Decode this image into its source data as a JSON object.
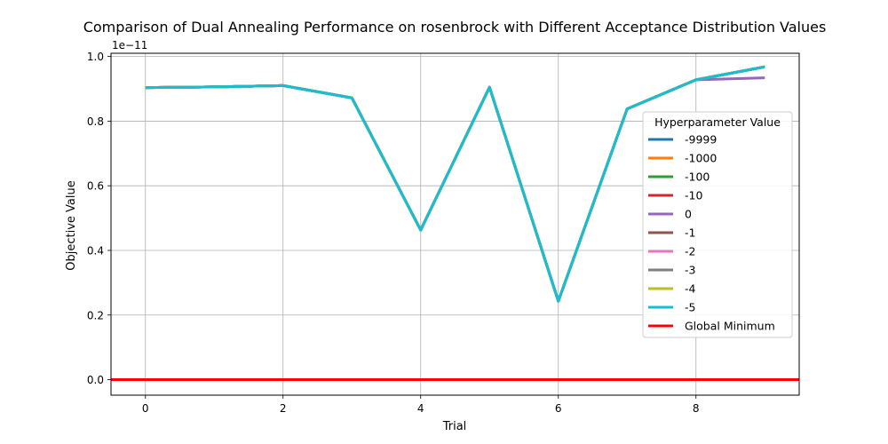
{
  "chart_data": {
    "type": "line",
    "title": "Comparison of Dual Annealing Performance on rosenbrock with Different Acceptance Distribution Values",
    "xlabel": "Trial",
    "ylabel": "Objective Value",
    "y_offset_label": "1e−11",
    "xlim": [
      -0.5,
      9.5
    ],
    "ylim": [
      -0.048,
      1.01
    ],
    "x_ticks": [
      0,
      2,
      4,
      6,
      8
    ],
    "y_ticks": [
      0.0,
      0.2,
      0.4,
      0.6,
      0.8,
      1.0
    ],
    "y_tick_labels": [
      "0.0",
      "0.2",
      "0.4",
      "0.6",
      "0.8",
      "1.0"
    ],
    "grid": true,
    "legend": {
      "title": "Hyperparameter Value",
      "placement": "center-right"
    },
    "x": [
      0,
      1,
      2,
      3,
      4,
      5,
      6,
      7,
      8,
      9
    ],
    "series": [
      {
        "name": "-9999",
        "color": "#1f77b4",
        "values": [
          0.904,
          0.906,
          0.91,
          0.872,
          0.463,
          0.905,
          0.243,
          0.838,
          0.928,
          0.968
        ]
      },
      {
        "name": "-1000",
        "color": "#ff7f0e",
        "values": [
          0.904,
          0.906,
          0.91,
          0.872,
          0.463,
          0.905,
          0.243,
          0.838,
          0.928,
          0.968
        ]
      },
      {
        "name": "-100",
        "color": "#2ca02c",
        "values": [
          0.904,
          0.906,
          0.91,
          0.872,
          0.463,
          0.905,
          0.243,
          0.838,
          0.928,
          0.968
        ]
      },
      {
        "name": "-10",
        "color": "#d62728",
        "values": [
          0.904,
          0.906,
          0.91,
          0.872,
          0.463,
          0.905,
          0.243,
          0.838,
          0.928,
          0.968
        ]
      },
      {
        "name": "0",
        "color": "#9467bd",
        "values": [
          0.904,
          0.906,
          0.91,
          0.872,
          0.463,
          0.905,
          0.243,
          0.838,
          0.928,
          0.934
        ]
      },
      {
        "name": "-1",
        "color": "#8c564b",
        "values": [
          0.904,
          0.906,
          0.91,
          0.872,
          0.463,
          0.905,
          0.243,
          0.838,
          0.928,
          0.968
        ]
      },
      {
        "name": "-2",
        "color": "#e377c2",
        "values": [
          0.904,
          0.906,
          0.91,
          0.872,
          0.463,
          0.905,
          0.243,
          0.838,
          0.928,
          0.968
        ]
      },
      {
        "name": "-3",
        "color": "#7f7f7f",
        "values": [
          0.904,
          0.906,
          0.91,
          0.872,
          0.463,
          0.905,
          0.243,
          0.838,
          0.928,
          0.968
        ]
      },
      {
        "name": "-4",
        "color": "#bcbd22",
        "values": [
          0.904,
          0.906,
          0.91,
          0.872,
          0.463,
          0.905,
          0.243,
          0.838,
          0.928,
          0.968
        ]
      },
      {
        "name": "-5",
        "color": "#17becf",
        "values": [
          0.904,
          0.906,
          0.91,
          0.872,
          0.463,
          0.905,
          0.243,
          0.838,
          0.928,
          0.968
        ]
      }
    ],
    "reference_line": {
      "name": "Global Minimum",
      "y": 0.0,
      "color": "#ff0000"
    }
  }
}
